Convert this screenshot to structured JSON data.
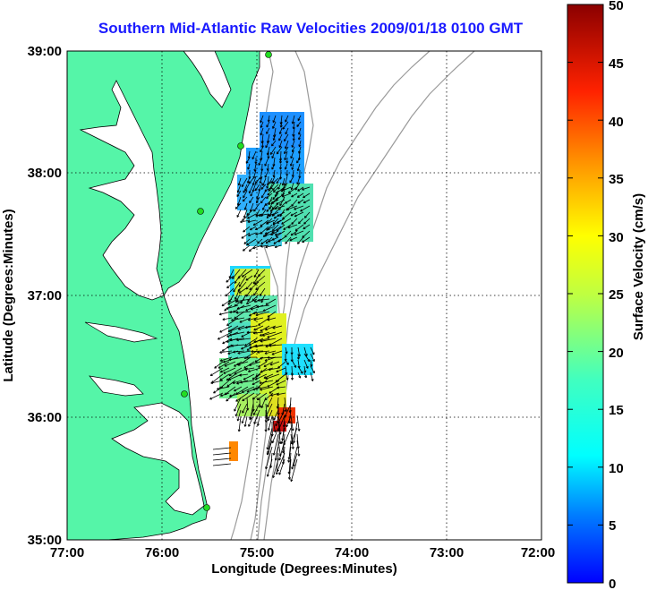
{
  "title": "Southern Mid-Atlantic Raw Velocities 2009/01/18 0100 GMT",
  "xaxis": {
    "label": "Longitude (Degrees:Minutes)",
    "ticks": [
      "77:00",
      "76:00",
      "75:00",
      "74:00",
      "73:00",
      "72:00"
    ]
  },
  "yaxis": {
    "label": "Latitude (Degrees:Minutes)",
    "ticks": [
      "39:00",
      "38:00",
      "37:00",
      "36:00",
      "35:00"
    ]
  },
  "colorbar": {
    "label": "Surface Velocity (cm/s)",
    "ticks": [
      "50",
      "45",
      "40",
      "35",
      "30",
      "25",
      "20",
      "15",
      "10",
      "5",
      "0"
    ]
  },
  "colors": {
    "land": "#55f5a8",
    "water": "#ffffff",
    "coastline": "#000000",
    "bathymetry": "#9a9a9a",
    "title": "#1a1aff",
    "station": "#22dd22"
  }
}
